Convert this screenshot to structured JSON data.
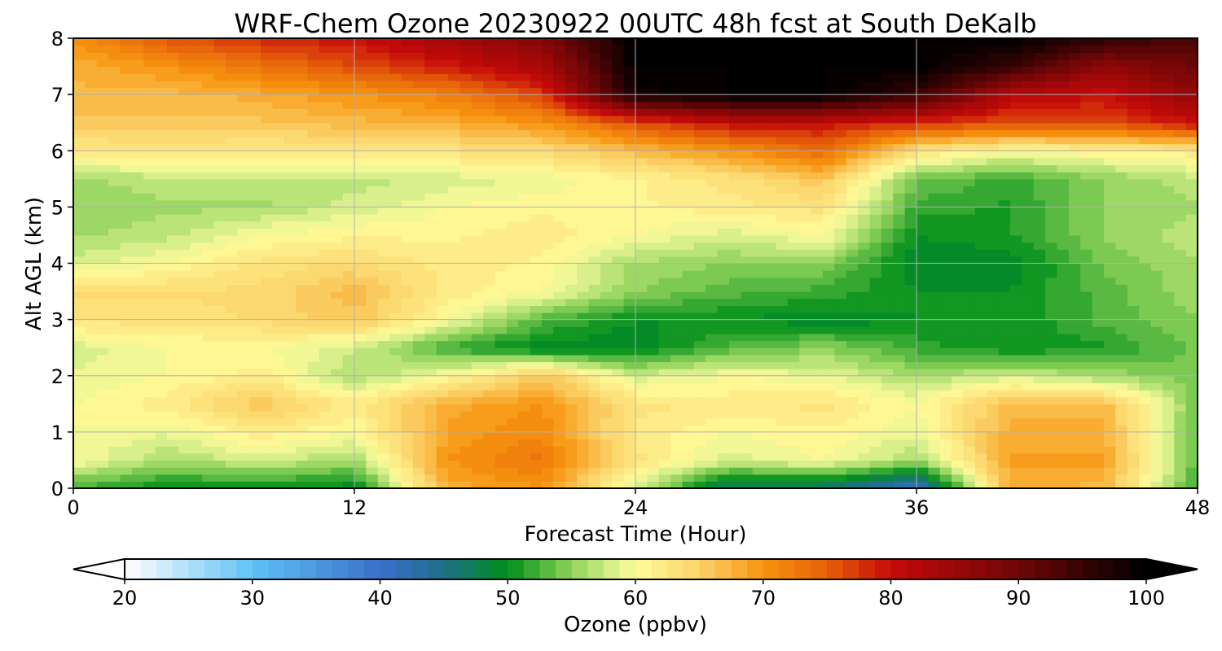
{
  "chart_data": {
    "type": "heatmap",
    "title": "WRF-Chem Ozone  20230922 00UTC 48h fcst at South DeKalb",
    "xlabel": "Forecast Time (Hour)",
    "ylabel": "Alt AGL (km)",
    "xlim": [
      0,
      48
    ],
    "ylim": [
      0,
      8
    ],
    "xticks": [
      "0",
      "12",
      "24",
      "36",
      "48"
    ],
    "yticks": [
      "0",
      "1",
      "2",
      "3",
      "4",
      "5",
      "6",
      "7",
      "8"
    ],
    "grid": true,
    "x": [
      0,
      4,
      8,
      12,
      16,
      20,
      24,
      28,
      32,
      36,
      40,
      44,
      48
    ],
    "y": [
      0,
      0.5,
      1,
      1.5,
      2,
      2.5,
      3,
      3.5,
      4,
      4.5,
      5,
      5.5,
      6,
      6.5,
      7,
      7.5,
      8
    ],
    "z": [
      [
        52,
        50,
        50,
        49,
        68,
        70,
        58,
        46,
        46,
        40,
        68,
        67,
        52
      ],
      [
        60,
        56,
        58,
        56,
        70,
        73,
        63,
        58,
        60,
        56,
        69,
        69,
        53
      ],
      [
        60,
        59,
        62,
        60,
        69,
        71,
        62,
        60,
        61,
        59,
        68,
        68,
        53
      ],
      [
        60,
        62,
        66,
        62,
        68,
        70,
        63,
        62,
        63,
        60,
        67,
        67,
        54
      ],
      [
        59,
        60,
        62,
        56,
        60,
        66,
        58,
        60,
        59,
        56,
        58,
        56,
        54
      ],
      [
        58,
        60,
        60,
        58,
        52,
        49,
        49,
        53,
        55,
        52,
        50,
        51,
        54
      ],
      [
        63,
        63,
        64,
        66,
        60,
        53,
        50,
        50,
        49,
        50,
        50,
        53,
        55
      ],
      [
        64,
        64,
        64,
        67,
        62,
        60,
        55,
        53,
        52,
        50,
        50,
        53,
        56
      ],
      [
        58,
        60,
        63,
        64,
        62,
        61,
        56,
        55,
        55,
        49,
        49,
        54,
        56
      ],
      [
        56,
        57,
        60,
        61,
        61,
        62,
        60,
        58,
        60,
        50,
        51,
        55,
        57
      ],
      [
        55,
        56,
        56,
        58,
        60,
        61,
        61,
        62,
        63,
        52,
        51,
        55,
        56
      ],
      [
        56,
        57,
        57,
        57,
        58,
        59,
        61,
        63,
        66,
        54,
        52,
        55,
        57
      ],
      [
        62,
        63,
        62,
        63,
        63,
        64,
        67,
        70,
        74,
        63,
        60,
        61,
        62
      ],
      [
        66,
        66,
        66,
        67,
        68,
        70,
        76,
        80,
        80,
        78,
        76,
        76,
        80
      ],
      [
        67,
        67,
        68,
        70,
        72,
        77,
        98,
        100,
        100,
        95,
        82,
        80,
        86
      ],
      [
        68,
        70,
        73,
        76,
        79,
        83,
        100,
        100,
        100,
        100,
        95,
        86,
        90
      ],
      [
        70,
        76,
        78,
        80,
        84,
        88,
        100,
        100,
        100,
        100,
        100,
        96,
        93
      ]
    ],
    "colorbar": {
      "label": "Ozone  (ppbv)",
      "min": 20,
      "max": 100,
      "ticks": [
        "20",
        "30",
        "40",
        "50",
        "60",
        "70",
        "80",
        "90",
        "100"
      ],
      "extend": "both",
      "stops": [
        [
          20,
          "#ffffff"
        ],
        [
          30,
          "#5fc2f5"
        ],
        [
          40,
          "#3a6fc9"
        ],
        [
          45,
          "#1f6f88"
        ],
        [
          50,
          "#008f1a"
        ],
        [
          55,
          "#8fd35a"
        ],
        [
          58,
          "#d6ee8a"
        ],
        [
          60,
          "#fffb9a"
        ],
        [
          65,
          "#fbd36a"
        ],
        [
          70,
          "#f7940f"
        ],
        [
          75,
          "#e6600a"
        ],
        [
          80,
          "#c50a0a"
        ],
        [
          90,
          "#6e0606"
        ],
        [
          100,
          "#000000"
        ]
      ]
    }
  }
}
